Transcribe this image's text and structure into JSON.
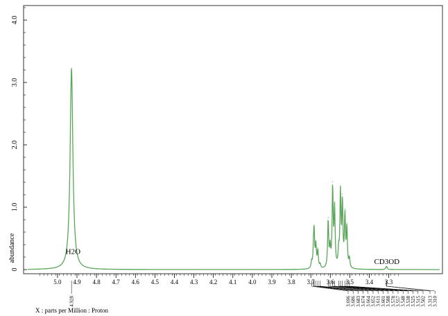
{
  "chart_data": {
    "type": "line",
    "title": "",
    "xlabel": "X : parts per Million : Proton",
    "ylabel": "abundance",
    "xlim": [
      5.1,
      3.25
    ],
    "ylim": [
      -0.05,
      4.3
    ],
    "x_reversed": true,
    "x_ticks": [
      "5.0",
      "4.9",
      "4.8",
      "4.7",
      "4.6",
      "4.5",
      "4.4",
      "4.3",
      "4.2",
      "4.1",
      "4.0",
      "3.9",
      "3.8",
      "3.7",
      "3.6",
      "3.5",
      "3.4",
      "3.3"
    ],
    "y_ticks": [
      "0",
      "1.0",
      "2.0",
      "3.0",
      "4.0"
    ],
    "line_color": "#5aa55a",
    "series": [
      {
        "peaks": [
          {
            "x": 4.928,
            "y": 3.23
          },
          {
            "x": 3.696,
            "y": 0.1
          },
          {
            "x": 3.686,
            "y": 0.25
          },
          {
            "x": 3.683,
            "y": 0.52
          },
          {
            "x": 3.674,
            "y": 0.35
          },
          {
            "x": 3.664,
            "y": 0.28
          },
          {
            "x": 3.652,
            "y": 0.06
          },
          {
            "x": 3.611,
            "y": 0.76
          },
          {
            "x": 3.601,
            "y": 0.3
          },
          {
            "x": 3.588,
            "y": 1.27
          },
          {
            "x": 3.578,
            "y": 0.92
          },
          {
            "x": 3.557,
            "y": 0.25
          },
          {
            "x": 3.548,
            "y": 1.18
          },
          {
            "x": 3.538,
            "y": 1.02
          },
          {
            "x": 3.525,
            "y": 0.82
          },
          {
            "x": 3.515,
            "y": 0.62
          },
          {
            "x": 3.502,
            "y": 0.15
          },
          {
            "x": 3.313,
            "y": 0.03
          },
          {
            "x": 3.31,
            "y": 0.03
          }
        ]
      }
    ],
    "annotations": [
      {
        "text": "H2O",
        "x": 4.92,
        "y": 0.25
      },
      {
        "text": "CD3OD",
        "x": 3.31,
        "y": 0.09
      }
    ],
    "peak_labels_group1": [
      {
        "text": "4.928",
        "x": 4.928
      }
    ],
    "peak_labels_group2": [
      {
        "text": "3.696",
        "x": 3.696
      },
      {
        "text": "3.686",
        "x": 3.686
      },
      {
        "text": "3.683",
        "x": 3.683
      },
      {
        "text": "3.674",
        "x": 3.674
      },
      {
        "text": "3.664",
        "x": 3.664
      },
      {
        "text": "3.652",
        "x": 3.652
      },
      {
        "text": "3.611",
        "x": 3.611
      },
      {
        "text": "3.601",
        "x": 3.601
      },
      {
        "text": "3.588",
        "x": 3.588
      },
      {
        "text": "3.578",
        "x": 3.578
      },
      {
        "text": "3.557",
        "x": 3.557
      },
      {
        "text": "3.548",
        "x": 3.548
      },
      {
        "text": "3.538",
        "x": 3.538
      },
      {
        "text": "3.525",
        "x": 3.525
      },
      {
        "text": "3.515",
        "x": 3.515
      },
      {
        "text": "3.502",
        "x": 3.502
      }
    ],
    "peak_labels_group3": [
      {
        "text": "3.313",
        "x": 3.313
      },
      {
        "text": "3.310",
        "x": 3.31
      }
    ]
  }
}
